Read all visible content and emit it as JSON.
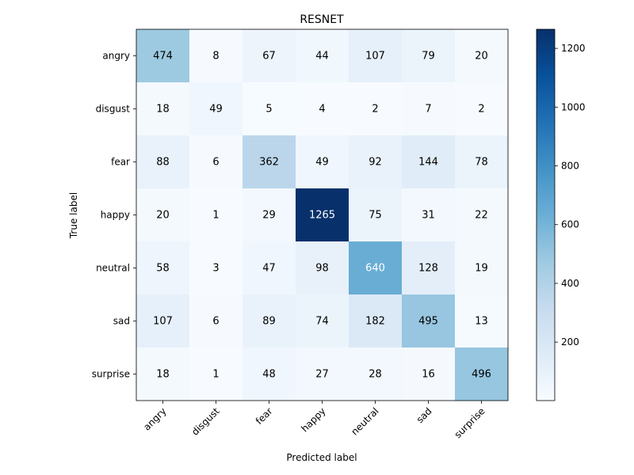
{
  "chart_data": {
    "type": "heatmap",
    "title": "RESNET",
    "xlabel": "Predicted label",
    "ylabel": "True label",
    "x_categories": [
      "angry",
      "disgust",
      "fear",
      "happy",
      "neutral",
      "sad",
      "surprise"
    ],
    "y_categories": [
      "angry",
      "disgust",
      "fear",
      "happy",
      "neutral",
      "sad",
      "surprise"
    ],
    "values": [
      [
        474,
        8,
        67,
        44,
        107,
        79,
        20
      ],
      [
        18,
        49,
        5,
        4,
        2,
        7,
        2
      ],
      [
        88,
        6,
        362,
        49,
        92,
        144,
        78
      ],
      [
        20,
        1,
        29,
        1265,
        75,
        31,
        22
      ],
      [
        58,
        3,
        47,
        98,
        640,
        128,
        19
      ],
      [
        107,
        6,
        89,
        74,
        182,
        495,
        13
      ],
      [
        18,
        1,
        48,
        27,
        28,
        16,
        496
      ]
    ],
    "colormap": "Blues",
    "color_range": [
      1,
      1265
    ],
    "colorbar_ticks": [
      200,
      400,
      600,
      800,
      1000,
      1200
    ],
    "colorbar_tick_labels": [
      "200",
      "400",
      "600",
      "800",
      "1000",
      "1200"
    ],
    "grid": false
  }
}
